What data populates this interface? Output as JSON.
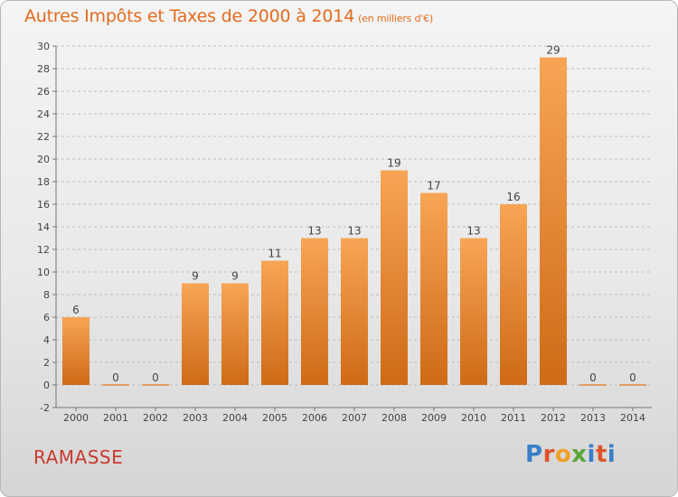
{
  "header": {
    "title": "Autres Impôts et Taxes de 2000 à 2014",
    "unit": "(en milliers d'€)"
  },
  "footer": {
    "place": "RAMASSE",
    "logo": "Proxiti"
  },
  "colors": {
    "title": "#e36b1e",
    "bar_top": "#f7a555",
    "bar_bottom": "#cf6a16",
    "place": "#c9392f",
    "grid": "#bdbdbd"
  },
  "chart_data": {
    "type": "bar",
    "title": "Autres Impôts et Taxes de 2000 à 2014",
    "subtitle": "(en milliers d'€)",
    "xlabel": "",
    "ylabel": "",
    "categories": [
      "2000",
      "2001",
      "2002",
      "2003",
      "2004",
      "2005",
      "2006",
      "2007",
      "2008",
      "2009",
      "2010",
      "2011",
      "2012",
      "2013",
      "2014"
    ],
    "values": [
      6,
      0,
      0,
      9,
      9,
      11,
      13,
      13,
      19,
      17,
      13,
      16,
      29,
      0,
      0
    ],
    "ylim": [
      -2,
      30
    ],
    "yticks": [
      -2,
      0,
      2,
      4,
      6,
      8,
      10,
      12,
      14,
      16,
      18,
      20,
      22,
      24,
      26,
      28,
      30
    ],
    "grid": true,
    "legend": "none"
  }
}
